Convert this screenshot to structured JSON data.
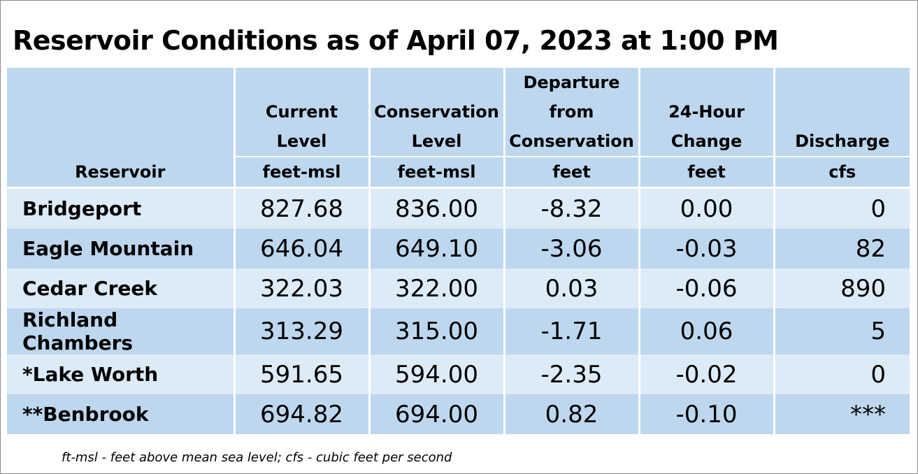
{
  "title": "Reservoir Conditions as of April 07, 2023 at 1:00 PM",
  "columns": [
    {
      "label_lines": [
        "",
        "",
        "",
        "Reservoir"
      ],
      "unit": ""
    },
    {
      "label_lines": [
        "",
        "Current",
        "Level"
      ],
      "unit": "feet-msl"
    },
    {
      "label_lines": [
        "",
        "Conservation",
        "Level"
      ],
      "unit": "feet-msl"
    },
    {
      "label_lines": [
        "Departure",
        "from",
        "Conservation"
      ],
      "unit": "feet"
    },
    {
      "label_lines": [
        "",
        "24-Hour",
        "Change"
      ],
      "unit": "feet"
    },
    {
      "label_lines": [
        "",
        "",
        "Discharge"
      ],
      "unit": "cfs"
    }
  ],
  "rows": [
    {
      "reservoir": "Bridgeport",
      "current_level": "827.68",
      "conservation_level": "836.00",
      "departure": "-8.32",
      "change_24h": "0.00",
      "discharge": "0"
    },
    {
      "reservoir": "Eagle Mountain",
      "current_level": "646.04",
      "conservation_level": "649.10",
      "departure": "-3.06",
      "change_24h": "-0.03",
      "discharge": "82"
    },
    {
      "reservoir": "Cedar Creek",
      "current_level": "322.03",
      "conservation_level": "322.00",
      "departure": "0.03",
      "change_24h": "-0.06",
      "discharge": "890"
    },
    {
      "reservoir": "Richland Chambers",
      "current_level": "313.29",
      "conservation_level": "315.00",
      "departure": "-1.71",
      "change_24h": "0.06",
      "discharge": "5"
    },
    {
      "reservoir": "*Lake Worth",
      "current_level": "591.65",
      "conservation_level": "594.00",
      "departure": "-2.35",
      "change_24h": "-0.02",
      "discharge": "0"
    },
    {
      "reservoir": "**Benbrook",
      "current_level": "694.82",
      "conservation_level": "694.00",
      "departure": "0.82",
      "change_24h": "-0.10",
      "discharge": "***"
    }
  ],
  "footnote": "ft-msl - feet above mean sea level; cfs - cubic feet per second",
  "colors": {
    "header_bg": "#bdd7ee",
    "row_light": "#ddebf7",
    "row_dark": "#bdd7ee"
  }
}
